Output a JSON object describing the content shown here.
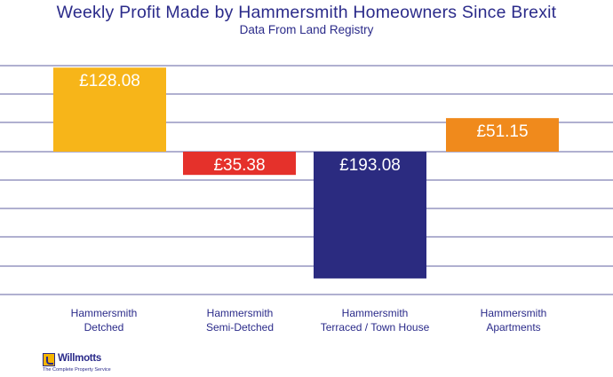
{
  "chart_data": {
    "type": "bar",
    "title": "Weekly Profit Made by Hammersmith  Homeowners Since Brexit",
    "subtitle": "Data From Land Registry",
    "categories": [
      "Hammersmith\nDetched",
      "Hammersmith\nSemi-Detched",
      "Hammersmith\nTerraced / Town House",
      "Hammersmith\nApartments"
    ],
    "values": [
      128.08,
      -35.38,
      -193.08,
      51.15
    ],
    "value_labels": [
      "£128.08",
      "£35.38",
      "£193.08",
      "£51.15"
    ],
    "colors": [
      "#f7b519",
      "#e5312b",
      "#2b2b80",
      "#f08a1c"
    ],
    "ylim": [
      -200,
      140
    ],
    "grid": true,
    "xlabel": "",
    "ylabel": ""
  },
  "logo": {
    "name": "Willmotts",
    "tagline": "The Complete Property Service"
  }
}
